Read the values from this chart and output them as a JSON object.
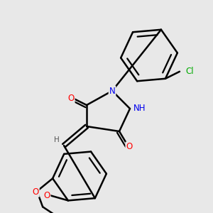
{
  "bg_color": "#e8e8e8",
  "bond_color": "#000000",
  "bond_width": 1.8,
  "atom_colors": {
    "O": "#ff0000",
    "N": "#0000ee",
    "Cl": "#00aa00",
    "C": "#000000",
    "H": "#555555"
  },
  "font_size_atom": 8.5,
  "font_size_small": 7.5
}
